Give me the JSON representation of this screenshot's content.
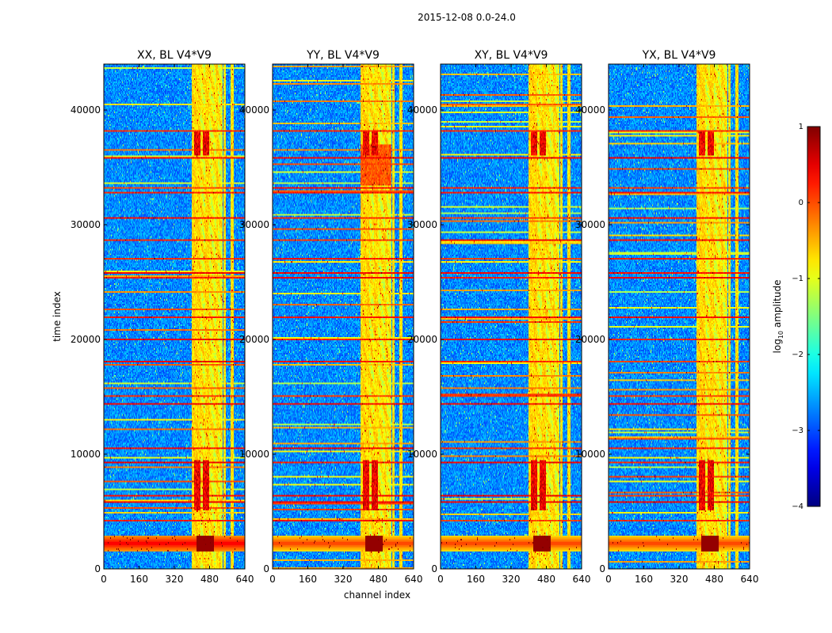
{
  "suptitle": "2015-12-08 0.0-24.0",
  "chart_data": {
    "type": "heatmap",
    "xlabel": "channel index",
    "ylabel": "time index",
    "xlim": [
      0,
      640
    ],
    "ylim": [
      0,
      44000
    ],
    "xticks": [
      0,
      160,
      320,
      480,
      640
    ],
    "yticks": [
      0,
      10000,
      20000,
      30000,
      40000
    ],
    "panels": [
      {
        "title": "XX, BL V4*V9"
      },
      {
        "title": "YY, BL V4*V9"
      },
      {
        "title": "XY, BL V4*V9"
      },
      {
        "title": "YX, BL V4*V9"
      }
    ],
    "colorbar": {
      "label": "log10 amplitude",
      "label_main": "log",
      "label_sub": "10",
      "label_rest": " amplitude",
      "range": [
        -4,
        1
      ],
      "ticks": [
        1,
        0,
        -1,
        -2,
        -3,
        -4
      ],
      "tick_labels": [
        "1",
        "0",
        "−1",
        "−2",
        "−3",
        "−4"
      ],
      "colormap": "jet"
    },
    "features": {
      "bright_channel_band": [
        400,
        540
      ],
      "bright_channel_columns": [
        [
          400,
          440
        ],
        [
          460,
          480
        ],
        [
          510,
          520
        ],
        [
          545,
          555
        ],
        [
          575,
          590
        ]
      ],
      "strong_rfi_time_band": [
        1500,
        2800
      ],
      "strong_rfi_channel_core": [
        420,
        500
      ],
      "flagged_time_rows": [
        38200,
        35800,
        33200,
        32800,
        30600,
        28700,
        27000,
        25800,
        25400,
        21900,
        20000,
        18000,
        15000,
        14300,
        10500,
        9200,
        6400,
        5800,
        4200
      ]
    }
  }
}
